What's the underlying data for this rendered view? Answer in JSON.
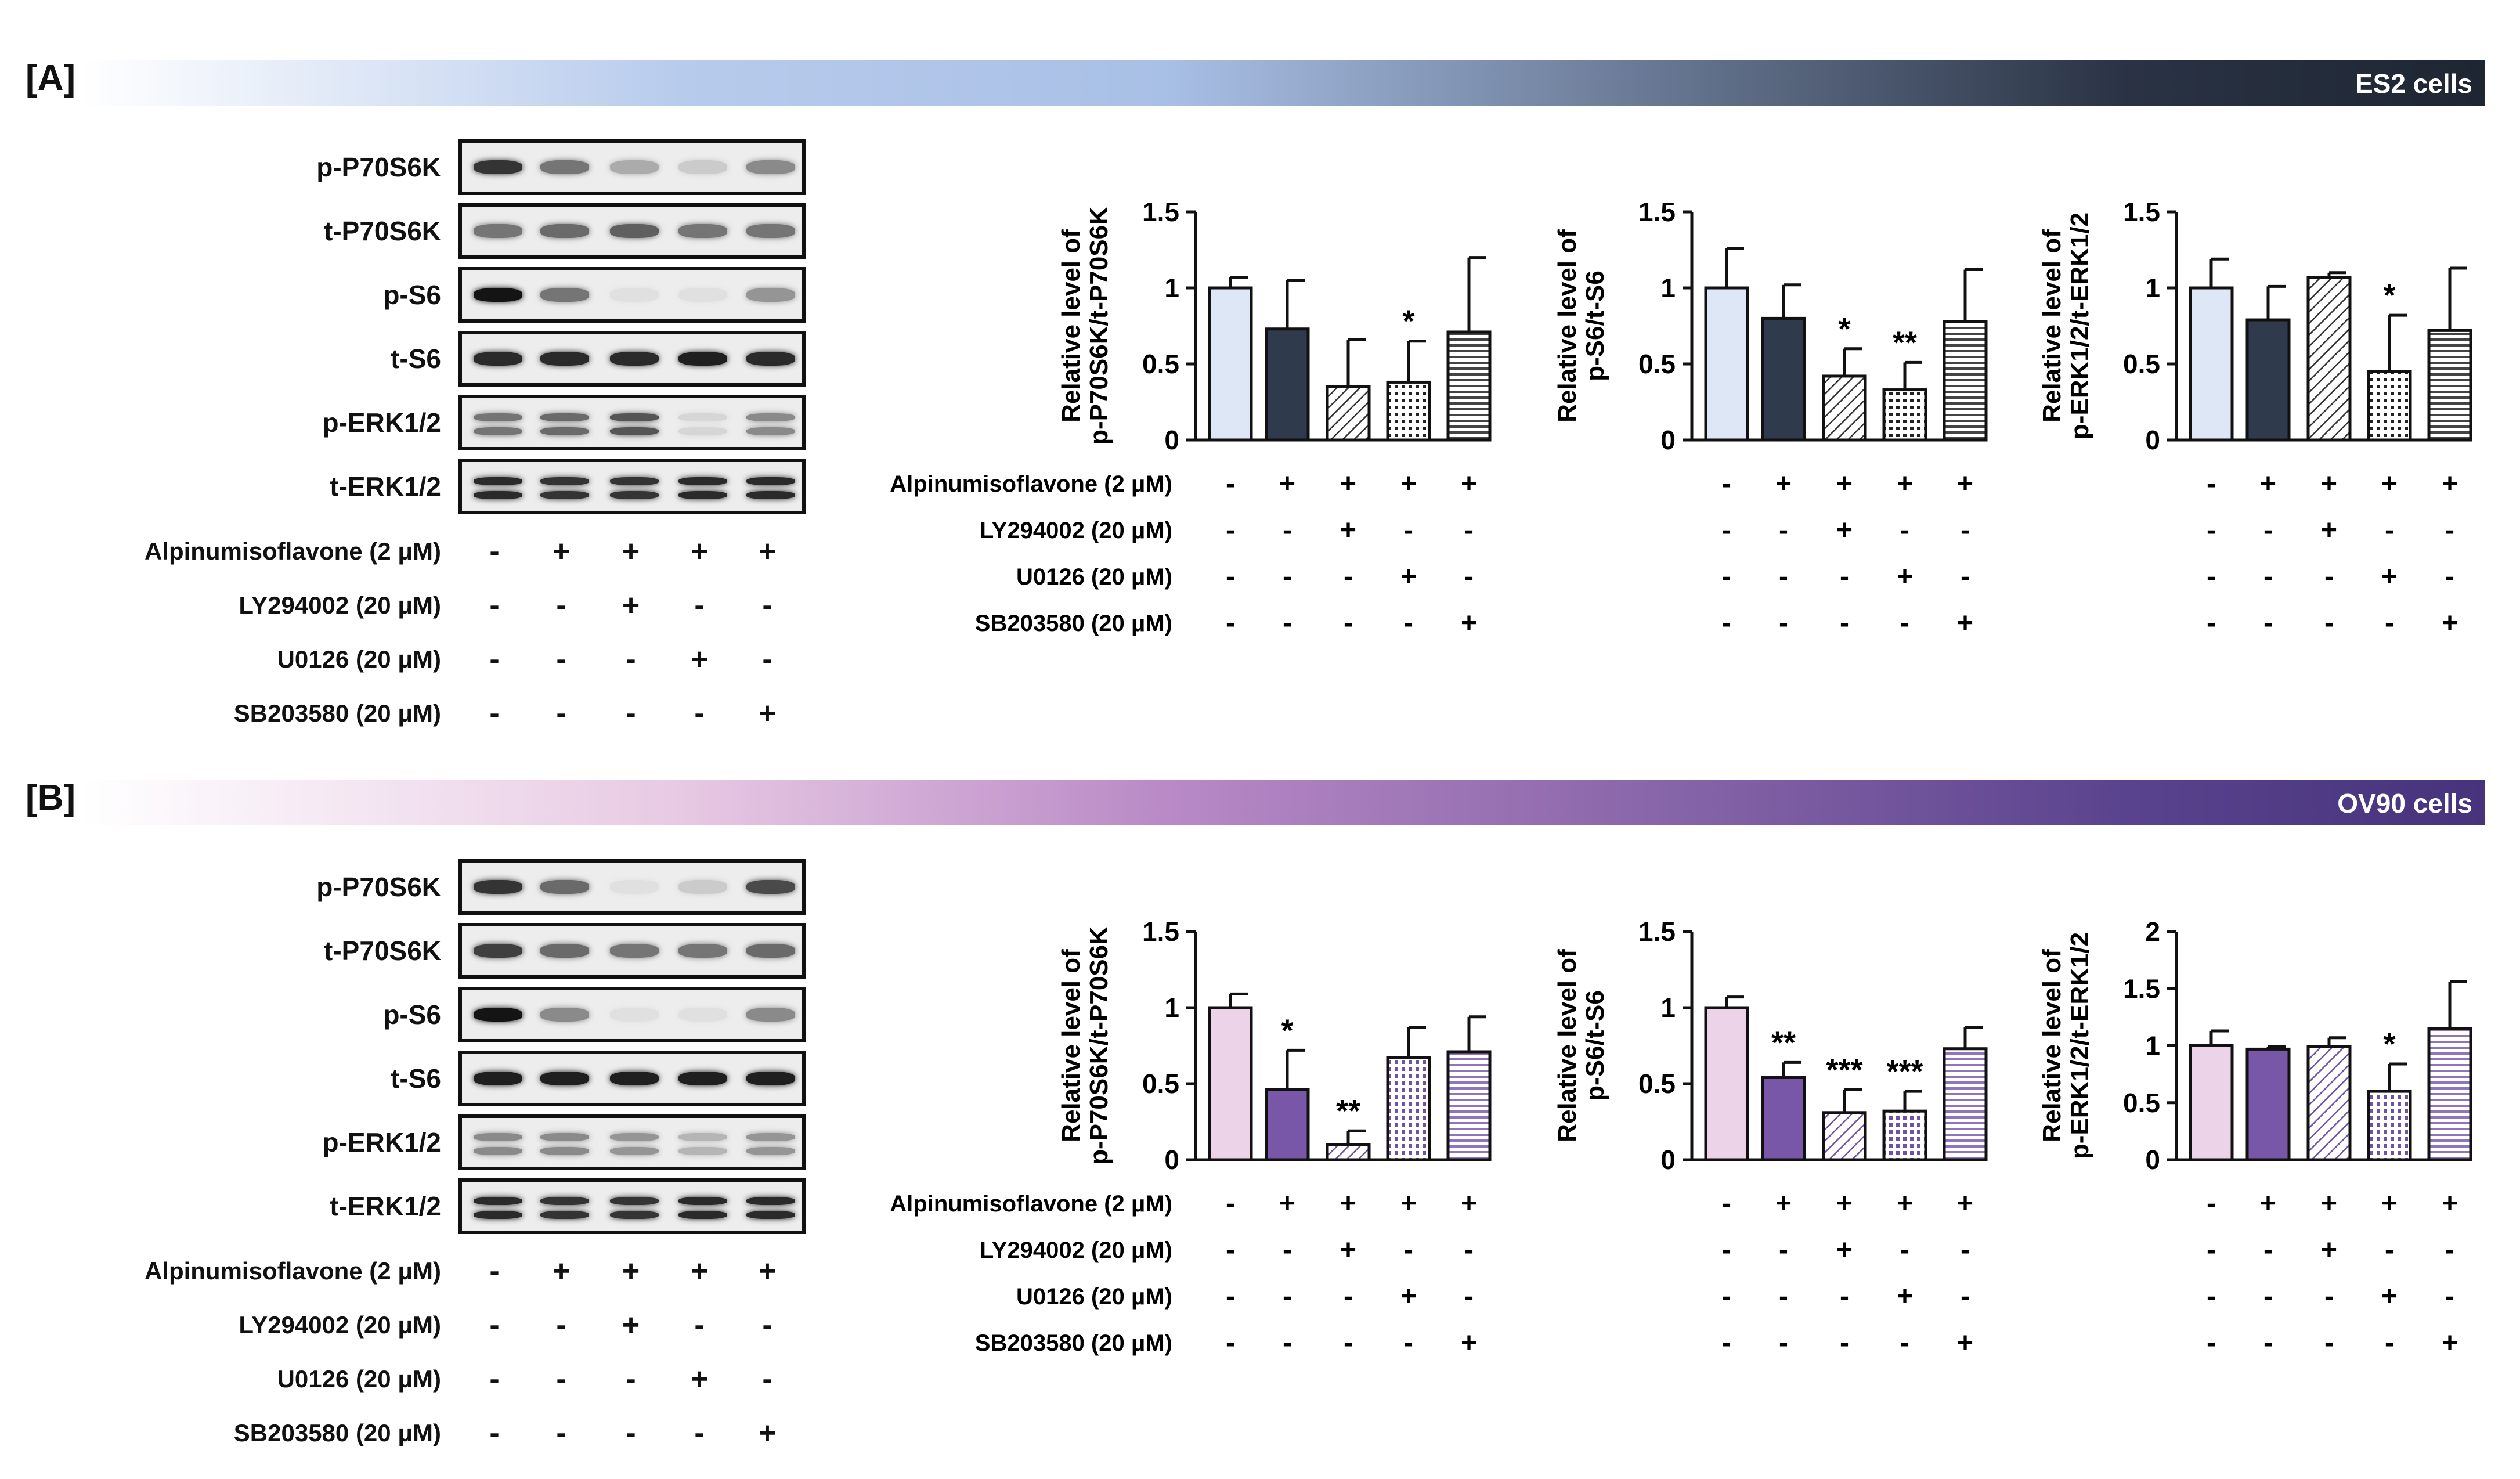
{
  "panels": [
    {
      "label": "[A]",
      "title": "ES2 cells",
      "gradient": [
        "#ffffff",
        "#b7cbec",
        "#a9c0e6",
        "#2a3344",
        "#1e2633"
      ],
      "bar_fill": "#dde7f6",
      "dark_fill": "#2f3a4d",
      "blots": [
        "p-P70S6K",
        "t-P70S6K",
        "p-S6",
        "t-S6",
        "p-ERK1/2",
        "t-ERK1/2"
      ]
    },
    {
      "label": "[B]",
      "title": "OV90 cells",
      "gradient": [
        "#ffffff",
        "#e7c9e3",
        "#b98ac6",
        "#5a438e",
        "#46337c"
      ],
      "bar_fill": "#ecd3e8",
      "dark_fill": "#7857a8",
      "blots": [
        "p-P70S6K",
        "t-P70S6K",
        "p-S6",
        "t-S6",
        "p-ERK1/2",
        "t-ERK1/2"
      ]
    }
  ],
  "treatments": [
    {
      "name": "Alpinumisoflavone (2 μM)",
      "signs": [
        "-",
        "+",
        "+",
        "+",
        "+"
      ]
    },
    {
      "name": "LY294002 (20 μM)",
      "signs": [
        "-",
        "-",
        "+",
        "-",
        "-"
      ]
    },
    {
      "name": "U0126 (20 μM)",
      "signs": [
        "-",
        "-",
        "-",
        "+",
        "-"
      ]
    },
    {
      "name": "SB203580 (20 μM)",
      "signs": [
        "-",
        "-",
        "-",
        "-",
        "+"
      ]
    }
  ],
  "chart_data": [
    {
      "type": "bar",
      "panel": "A",
      "ylabel": "Relative level of p-P70S6K/t-P70S6K",
      "ylim": [
        0,
        1.5
      ],
      "yticks": [
        "0",
        "0.5",
        "1",
        "1.5"
      ],
      "values": [
        1.0,
        0.73,
        0.35,
        0.38,
        0.71
      ],
      "errors": [
        0.07,
        0.32,
        0.31,
        0.27,
        0.49
      ],
      "significance": [
        "",
        "",
        "",
        "*",
        ""
      ]
    },
    {
      "type": "bar",
      "panel": "A",
      "ylabel": "Relative level of p-S6/t-S6",
      "ylim": [
        0,
        1.5
      ],
      "yticks": [
        "0",
        "0.5",
        "1",
        "1.5"
      ],
      "values": [
        1.0,
        0.8,
        0.42,
        0.33,
        0.78
      ],
      "errors": [
        0.26,
        0.22,
        0.18,
        0.18,
        0.34
      ],
      "significance": [
        "",
        "",
        "*",
        "**",
        ""
      ]
    },
    {
      "type": "bar",
      "panel": "A",
      "ylabel": "Relative level of p-ERK1/2/t-ERK1/2",
      "ylim": [
        0,
        1.5
      ],
      "yticks": [
        "0",
        "0.5",
        "1",
        "1.5"
      ],
      "values": [
        1.0,
        0.79,
        1.07,
        0.45,
        0.72
      ],
      "errors": [
        0.19,
        0.22,
        0.03,
        0.37,
        0.41
      ],
      "significance": [
        "",
        "",
        "",
        "*",
        ""
      ]
    },
    {
      "type": "bar",
      "panel": "B",
      "ylabel": "Relative level of p-P70S6K/t-P70S6K",
      "ylim": [
        0,
        1.5
      ],
      "yticks": [
        "0",
        "0.5",
        "1",
        "1.5"
      ],
      "values": [
        1.0,
        0.46,
        0.1,
        0.67,
        0.71
      ],
      "errors": [
        0.09,
        0.26,
        0.09,
        0.2,
        0.23
      ],
      "significance": [
        "",
        "*",
        "**",
        "",
        ""
      ]
    },
    {
      "type": "bar",
      "panel": "B",
      "ylabel": "Relative level of p-S6/t-S6",
      "ylim": [
        0,
        1.5
      ],
      "yticks": [
        "0",
        "0.5",
        "1",
        "1.5"
      ],
      "values": [
        1.0,
        0.54,
        0.31,
        0.32,
        0.73
      ],
      "errors": [
        0.07,
        0.1,
        0.15,
        0.13,
        0.14
      ],
      "significance": [
        "",
        "**",
        "***",
        "***",
        ""
      ]
    },
    {
      "type": "bar",
      "panel": "B",
      "ylabel": "Relative level of p-ERK1/2/t-ERK1/2",
      "ylim": [
        0,
        2
      ],
      "yticks": [
        "0",
        "0.5",
        "1",
        "1.5",
        "2"
      ],
      "values": [
        1.0,
        0.97,
        0.99,
        0.6,
        1.15
      ],
      "errors": [
        0.13,
        0.02,
        0.08,
        0.24,
        0.41
      ],
      "significance": [
        "",
        "",
        "",
        "*",
        ""
      ]
    }
  ]
}
